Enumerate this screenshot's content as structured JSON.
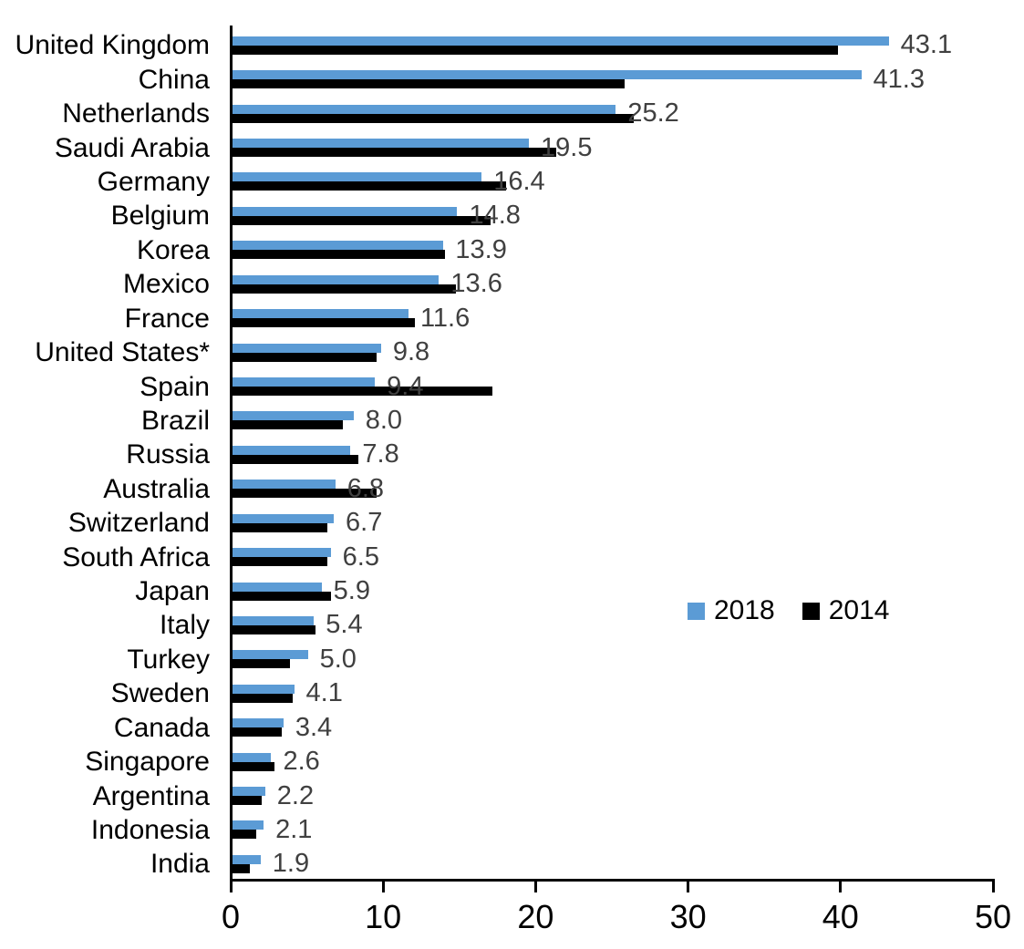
{
  "chart_data": {
    "type": "bar",
    "orientation": "horizontal",
    "title": "",
    "xlabel": "",
    "ylabel": "",
    "xlim": [
      0,
      50
    ],
    "x_ticks": [
      "0",
      "10",
      "20",
      "30",
      "40",
      "50"
    ],
    "grid": false,
    "legend_position": "center-right",
    "categories": [
      "United Kingdom",
      "China",
      "Netherlands",
      "Saudi Arabia",
      "Germany",
      "Belgium",
      "Korea",
      "Mexico",
      "France",
      "United States*",
      "Spain",
      "Brazil",
      "Russia",
      "Australia",
      "Switzerland",
      "South Africa",
      "Japan",
      "Italy",
      "Turkey",
      "Sweden",
      "Canada",
      "Singapore",
      "Argentina",
      "Indonesia",
      "India"
    ],
    "series": [
      {
        "name": "2018",
        "color": "#5B9BD5",
        "values": [
          43.1,
          41.3,
          25.2,
          19.5,
          16.4,
          14.8,
          13.9,
          13.6,
          11.6,
          9.8,
          9.4,
          8.0,
          7.8,
          6.8,
          6.7,
          6.5,
          5.9,
          5.4,
          5.0,
          4.1,
          3.4,
          2.6,
          2.2,
          2.1,
          1.9
        ]
      },
      {
        "name": "2014",
        "color": "#000000",
        "values": [
          39.8,
          25.8,
          26.4,
          21.3,
          18.0,
          17.0,
          14.0,
          14.7,
          12.0,
          9.5,
          17.1,
          7.3,
          8.3,
          9.5,
          6.3,
          6.3,
          6.5,
          5.5,
          3.8,
          4.0,
          3.3,
          2.8,
          2.0,
          1.6,
          1.2
        ]
      }
    ],
    "value_labels": [
      "43.1",
      "41.3",
      "25.2",
      "19.5",
      "16.4",
      "14.8",
      "13.9",
      "13.6",
      "11.6",
      "9.8",
      "9.4",
      "8.0",
      "7.8",
      "6.8",
      "6.7",
      "6.5",
      "5.9",
      "5.4",
      "5.0",
      "4.1",
      "3.4",
      "2.6",
      "2.2",
      "2.1",
      "1.9"
    ],
    "value_label_series": "2018",
    "value_label_color": "#404040",
    "axis_color": "#000000"
  }
}
